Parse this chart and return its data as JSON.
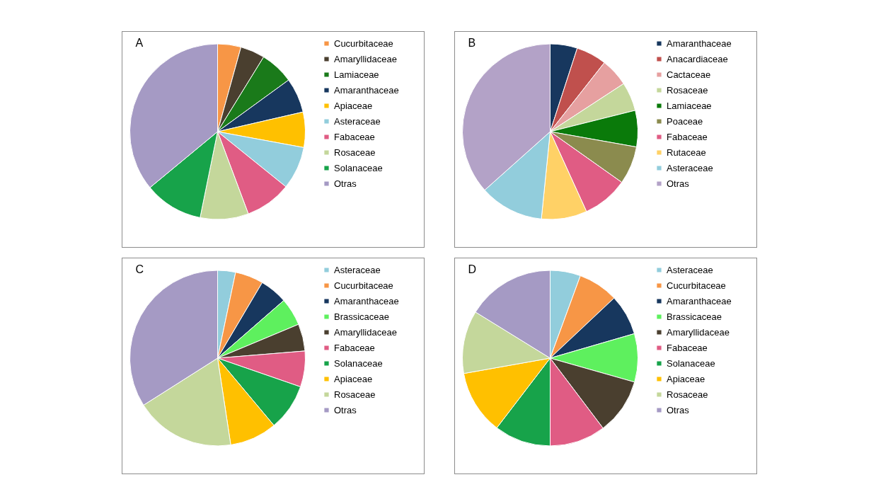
{
  "chart_data": [
    {
      "type": "pie",
      "title": "A",
      "legend": "right",
      "categories": [
        "Cucurbitaceae",
        "Amaryllidaceae",
        "Lamiaceae",
        "Amaranthaceae",
        "Apiaceae",
        "Asteraceae",
        "Fabaceae",
        "Rosaceae",
        "Solanaceae",
        "Otras"
      ],
      "values": [
        4.3,
        4.5,
        6.2,
        6.4,
        6.5,
        7.9,
        8.5,
        8.9,
        10.8,
        36
      ],
      "colors": [
        "#f79646",
        "#4a3f2f",
        "#1a7a1a",
        "#17375e",
        "#ffc000",
        "#92cddc",
        "#e05c84",
        "#c4d79b",
        "#17a34a",
        "#a59ac4"
      ]
    },
    {
      "type": "pie",
      "title": "B",
      "legend": "right",
      "categories": [
        "Amaranthaceae",
        "Anacardiaceae",
        "Cactaceae",
        "Rosaceae",
        "Lamiaceae",
        "Poaceae",
        "Fabaceae",
        "Rutaceae",
        "Asteraceae",
        "Otras"
      ],
      "values": [
        5,
        5.6,
        5.2,
        5.3,
        6.7,
        7,
        8.4,
        8.4,
        11.8,
        36.6
      ],
      "colors": [
        "#17375e",
        "#c0504d",
        "#e6a0a0",
        "#c4d79b",
        "#0a7a0a",
        "#8b8b4e",
        "#e05c84",
        "#ffd166",
        "#92cddc",
        "#b3a2c7"
      ]
    },
    {
      "type": "pie",
      "title": "C",
      "legend": "right",
      "categories": [
        "Asteraceae",
        "Cucurbitaceae",
        "Amaranthaceae",
        "Brassicaceae",
        "Amaryllidaceae",
        "Fabaceae",
        "Solanaceae",
        "Apiaceae",
        "Rosaceae",
        "Otras"
      ],
      "values": [
        3.3,
        5.2,
        5.1,
        5.1,
        5,
        6.6,
        8.6,
        8.7,
        18.4,
        34
      ],
      "colors": [
        "#92cddc",
        "#f79646",
        "#17375e",
        "#5ef05e",
        "#4a3f2f",
        "#e05c84",
        "#17a34a",
        "#ffc000",
        "#c4d79b",
        "#a59ac4"
      ]
    },
    {
      "type": "pie",
      "title": "D",
      "legend": "right",
      "categories": [
        "Asteraceae",
        "Cucurbitaceae",
        "Amaranthaceae",
        "Brassicaceae",
        "Amaryllidaceae",
        "Fabaceae",
        "Solanaceae",
        "Apiaceae",
        "Rosaceae",
        "Otras"
      ],
      "values": [
        5.6,
        7.4,
        7.5,
        8.9,
        10.3,
        10.3,
        10.4,
        11.8,
        11.6,
        16.2
      ],
      "colors": [
        "#92cddc",
        "#f79646",
        "#17375e",
        "#5ef05e",
        "#4a3f2f",
        "#e05c84",
        "#17a34a",
        "#ffc000",
        "#c4d79b",
        "#a59ac4"
      ]
    }
  ]
}
